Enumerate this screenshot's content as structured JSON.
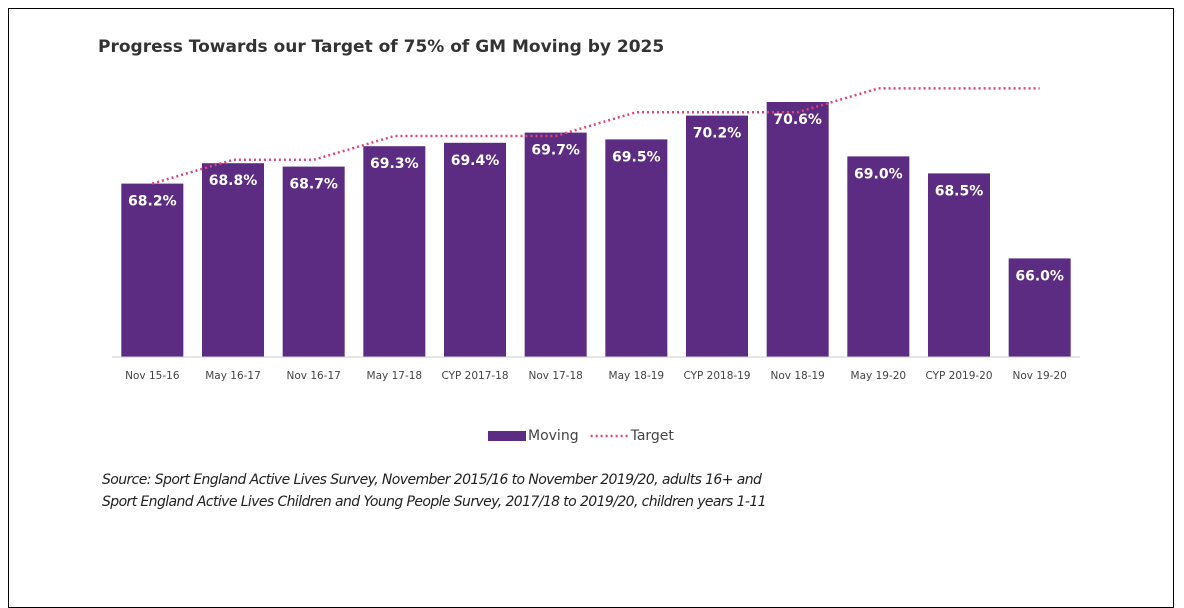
{
  "chart_data": {
    "type": "bar",
    "title": "Progress Towards our Target of 75% of GM Moving by 2025",
    "categories": [
      "Nov 15-16",
      "May 16-17",
      "Nov 16-17",
      "May 17-18",
      "CYP 2017-18",
      "Nov 17-18",
      "May 18-19",
      "CYP 2018-19",
      "Nov 18-19",
      "May 19-20",
      "CYP 2019-20",
      "Nov 19-20"
    ],
    "series": [
      {
        "name": "Moving",
        "color": "#5b2c82",
        "values": [
          68.2,
          68.8,
          68.7,
          69.3,
          69.4,
          69.7,
          69.5,
          70.2,
          70.6,
          69.0,
          68.5,
          66.0
        ],
        "value_labels": [
          "68.2%",
          "68.8%",
          "68.7%",
          "69.3%",
          "69.4%",
          "69.7%",
          "69.5%",
          "70.2%",
          "70.6%",
          "69.0%",
          "68.5%",
          "66.0%"
        ]
      },
      {
        "name": "Target",
        "type": "line",
        "color": "#e0447a",
        "values": [
          68.2,
          68.9,
          68.9,
          69.6,
          69.6,
          69.6,
          70.3,
          70.3,
          70.3,
          71.0,
          71.0,
          71.0
        ]
      }
    ],
    "ylim": [
      63.1,
      71.6
    ],
    "legend": "bottom",
    "source": [
      "Source: Sport England Active Lives Survey, November 2015/16 to November 2019/20, adults 16+ and",
      "Sport England Active Lives Children and Young People Survey, 2017/18 to 2019/20, children years 1-11"
    ]
  }
}
